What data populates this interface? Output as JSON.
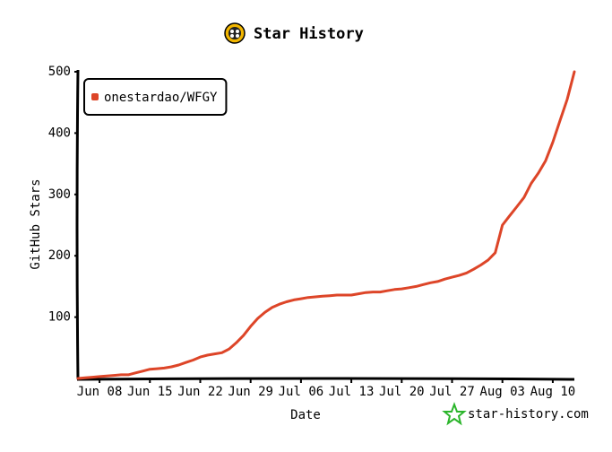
{
  "chart_data": {
    "type": "line",
    "title": "Star History",
    "xlabel": "Date",
    "ylabel": "GitHub Stars",
    "watermark": "star-history.com",
    "categories": [
      null,
      null,
      null,
      "Jun 08",
      null,
      null,
      null,
      null,
      null,
      null,
      "Jun 15",
      null,
      null,
      null,
      null,
      null,
      null,
      "Jun 22",
      null,
      null,
      null,
      null,
      null,
      null,
      "Jun 29",
      null,
      null,
      null,
      null,
      null,
      null,
      "Jul 06",
      null,
      null,
      null,
      null,
      null,
      null,
      "Jul 13",
      null,
      null,
      null,
      null,
      null,
      null,
      "Jul 20",
      null,
      null,
      null,
      null,
      null,
      null,
      "Jul 27",
      null,
      null,
      null,
      null,
      null,
      null,
      "Aug 03",
      null,
      null,
      null,
      null,
      null,
      null,
      "Aug 10",
      null,
      null,
      null
    ],
    "series": [
      {
        "name": "onestardao/WFGY",
        "color": "#dd4528",
        "values": [
          0,
          1,
          2,
          3,
          4,
          5,
          6,
          6,
          9,
          12,
          15,
          16,
          17,
          19,
          22,
          26,
          30,
          35,
          38,
          40,
          42,
          48,
          58,
          70,
          85,
          98,
          108,
          116,
          121,
          125,
          128,
          130,
          132,
          133,
          134,
          135,
          136,
          136,
          136,
          138,
          140,
          141,
          141,
          143,
          145,
          146,
          148,
          150,
          153,
          156,
          158,
          162,
          165,
          168,
          172,
          178,
          185,
          193,
          205,
          250,
          265,
          280,
          295,
          318,
          335,
          355,
          385,
          420,
          455,
          500
        ]
      }
    ],
    "ylim": [
      0,
      500
    ],
    "yticks": [
      100,
      200,
      300,
      400,
      500
    ],
    "legend": "top-left",
    "grid": false
  }
}
